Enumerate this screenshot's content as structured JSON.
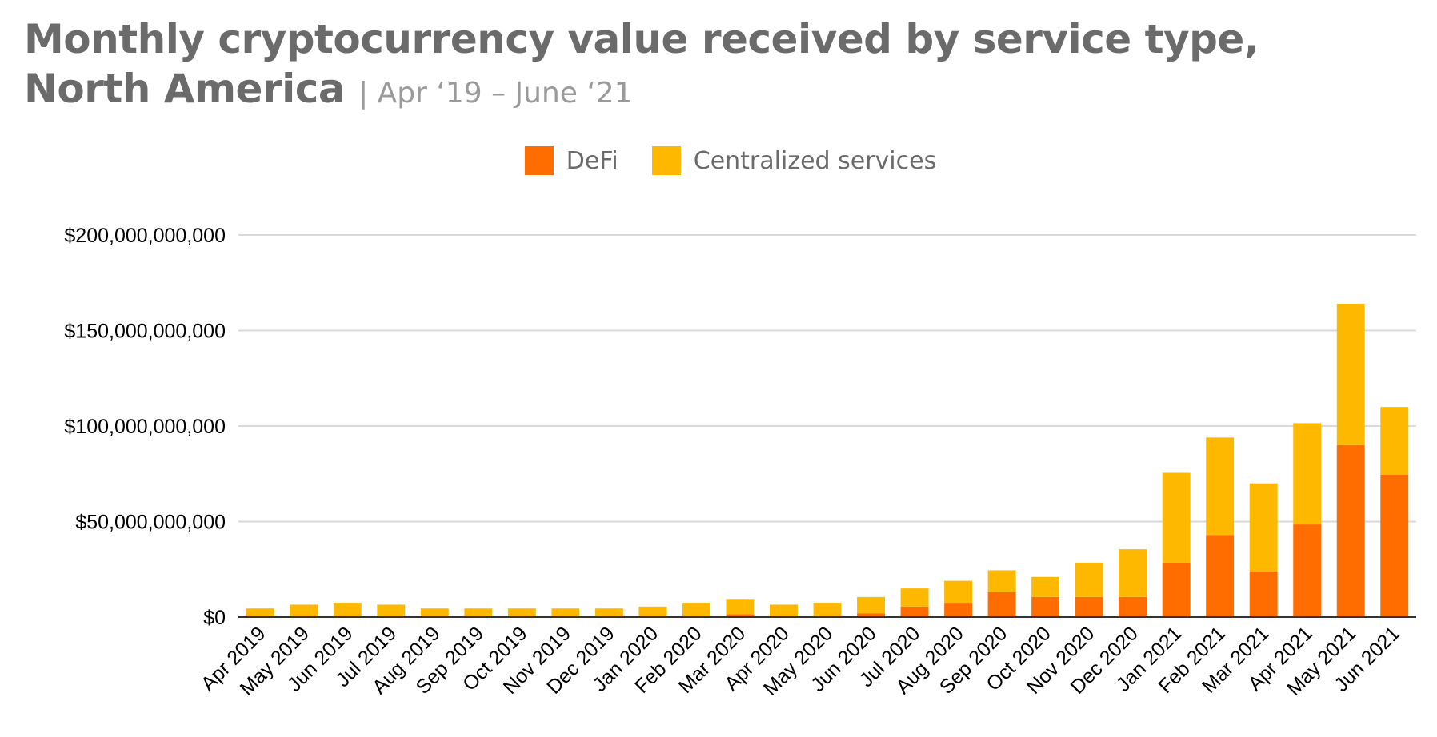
{
  "title": {
    "main_line1": "Monthly cryptocurrency value received by service type,",
    "main_line2": "North America",
    "subtitle": "| Apr ‘19 – June ‘21"
  },
  "colors": {
    "defi": "#ff6c00",
    "centralized": "#ffb800",
    "grid": "#d9d9d9",
    "axis": "#333333"
  },
  "chart_data": {
    "type": "bar",
    "stacked": true,
    "title": "Monthly cryptocurrency value received by service type, North America | Apr ‘19 – June ‘21",
    "xlabel": "",
    "ylabel": "",
    "ylim": [
      0,
      200000000000
    ],
    "yticks": [
      {
        "value": 0,
        "label": "$0"
      },
      {
        "value": 50000000000,
        "label": "$50,000,000,000"
      },
      {
        "value": 100000000000,
        "label": "$100,000,000,000"
      },
      {
        "value": 150000000000,
        "label": "$150,000,000,000"
      },
      {
        "value": 200000000000,
        "label": "$200,000,000,000"
      }
    ],
    "legend_position": "top-center",
    "categories": [
      "Apr 2019",
      "May 2019",
      "Jun 2019",
      "Jul 2019",
      "Aug 2019",
      "Sep 2019",
      "Oct 2019",
      "Nov 2019",
      "Dec 2019",
      "Jan 2020",
      "Feb 2020",
      "Mar 2020",
      "Apr 2020",
      "May 2020",
      "Jun 2020",
      "Jul 2020",
      "Aug 2020",
      "Sep 2020",
      "Oct 2020",
      "Nov 2020",
      "Dec 2020",
      "Jan 2021",
      "Feb 2021",
      "Mar 2021",
      "Apr 2021",
      "May 2021",
      "Jun 2021"
    ],
    "series": [
      {
        "name": "DeFi",
        "values": [
          0,
          0,
          0,
          0,
          0,
          0,
          0,
          0,
          0,
          0,
          0,
          1500000000,
          0,
          0,
          2000000000,
          5500000000,
          7500000000,
          13000000000,
          10500000000,
          10500000000,
          10500000000,
          28500000000,
          43000000000,
          24000000000,
          48500000000,
          90000000000,
          74500000000
        ]
      },
      {
        "name": "Centralized services",
        "values": [
          4500000000,
          6500000000,
          7500000000,
          6500000000,
          4500000000,
          4500000000,
          4500000000,
          4500000000,
          4500000000,
          5500000000,
          7500000000,
          8000000000,
          6500000000,
          7500000000,
          8500000000,
          9500000000,
          11500000000,
          11500000000,
          10500000000,
          18000000000,
          25000000000,
          47000000000,
          51000000000,
          46000000000,
          53000000000,
          74000000000,
          35500000000
        ]
      }
    ]
  }
}
